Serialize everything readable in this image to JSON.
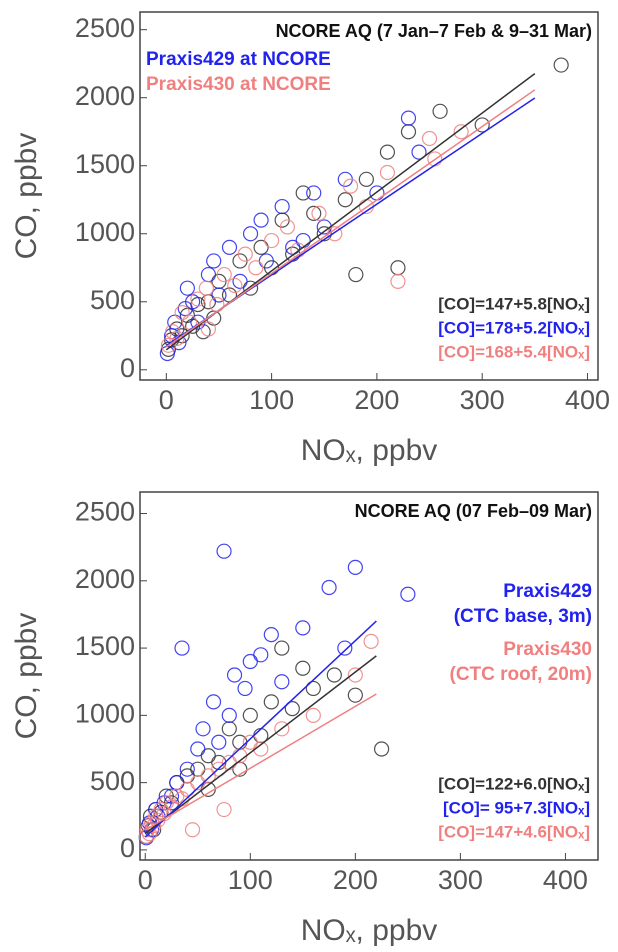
{
  "chart_data": [
    {
      "type": "scatter",
      "title": "NCORE AQ (7 Jan–7 Feb & 9–31 Mar)",
      "xlabel": "NOₓ, ppbv",
      "ylabel": "CO, ppbv",
      "xlim": [
        -25,
        410
      ],
      "ylim": [
        -75,
        2630
      ],
      "xticks": [
        0,
        100,
        200,
        300,
        400
      ],
      "yticks": [
        0,
        500,
        1000,
        1500,
        2000,
        2500
      ],
      "legend": "upper left",
      "series": [
        {
          "color": "#333333",
          "x": [
            2,
            5,
            10,
            15,
            20,
            25,
            30,
            40,
            45,
            50,
            60,
            70,
            80,
            90,
            100,
            110,
            120,
            130,
            150,
            170,
            190,
            210,
            230,
            260,
            300,
            375,
            220,
            180,
            140,
            35
          ],
          "y": [
            150,
            220,
            300,
            250,
            400,
            320,
            480,
            500,
            380,
            650,
            550,
            800,
            600,
            900,
            750,
            1100,
            850,
            1300,
            1000,
            1250,
            1400,
            1600,
            1750,
            1900,
            1800,
            2240,
            750,
            700,
            1150,
            280
          ],
          "fit": {
            "intercept": 147,
            "slope": 5.8,
            "x_range": [
              0,
              350
            ],
            "label": "[CO]=147+5.8[NOₓ]"
          }
        },
        {
          "name": [
            "Praxis429 at NCORE"
          ],
          "color": "#2222ee",
          "x": [
            1,
            5,
            8,
            12,
            18,
            25,
            30,
            40,
            50,
            60,
            70,
            80,
            95,
            110,
            120,
            140,
            150,
            170,
            200,
            240,
            230,
            20,
            45,
            90,
            130
          ],
          "y": [
            120,
            250,
            350,
            200,
            450,
            500,
            350,
            700,
            550,
            900,
            650,
            1000,
            800,
            1200,
            900,
            1300,
            1050,
            1400,
            1300,
            1600,
            1850,
            600,
            800,
            1100,
            950
          ],
          "fit": {
            "intercept": 178,
            "slope": 5.2,
            "x_range": [
              0,
              350
            ],
            "label": "[CO]=178+5.2[NOₓ]"
          }
        },
        {
          "name": [
            "Praxis430 at NCORE"
          ],
          "color": "#f08080",
          "x": [
            2,
            6,
            10,
            15,
            22,
            30,
            38,
            48,
            55,
            65,
            75,
            85,
            100,
            115,
            125,
            145,
            160,
            175,
            190,
            210,
            250,
            280,
            255,
            40,
            220
          ],
          "y": [
            180,
            280,
            230,
            420,
            350,
            520,
            600,
            480,
            700,
            620,
            850,
            750,
            950,
            1050,
            880,
            1150,
            1000,
            1350,
            1200,
            1450,
            1700,
            1750,
            1550,
            300,
            650
          ],
          "fit": {
            "intercept": 168,
            "slope": 5.4,
            "x_range": [
              0,
              350
            ],
            "label": "[CO]=168+5.4[NOₓ]"
          }
        }
      ]
    },
    {
      "type": "scatter",
      "title": "NCORE AQ (07 Feb–09 Mar)",
      "xlabel": "NOₓ, ppbv",
      "ylabel": "CO, ppbv",
      "xlim": [
        -5,
        431
      ],
      "ylim": [
        -75,
        2660
      ],
      "xticks": [
        0,
        100,
        200,
        300,
        400
      ],
      "yticks": [
        0,
        500,
        1000,
        1500,
        2000,
        2500
      ],
      "legend": "upper right",
      "series": [
        {
          "color": "#333333",
          "x": [
            1,
            3,
            5,
            8,
            10,
            15,
            20,
            25,
            30,
            40,
            50,
            60,
            70,
            80,
            90,
            100,
            110,
            120,
            140,
            160,
            180,
            200,
            225,
            150,
            130,
            60,
            90
          ],
          "y": [
            100,
            180,
            250,
            150,
            300,
            280,
            400,
            350,
            500,
            550,
            600,
            700,
            650,
            900,
            800,
            1000,
            850,
            1100,
            1050,
            1200,
            1300,
            1150,
            750,
            1350,
            1500,
            450,
            600
          ],
          "fit": {
            "intercept": 122,
            "slope": 6.0,
            "x_range": [
              0,
              220
            ],
            "label": "[CO]=122+6.0[NOₓ]"
          }
        },
        {
          "name": [
            "Praxis429",
            "(CTC base, 3m)"
          ],
          "color": "#2222ee",
          "x": [
            1,
            4,
            6,
            10,
            12,
            18,
            25,
            30,
            40,
            50,
            55,
            65,
            75,
            80,
            85,
            95,
            100,
            110,
            120,
            130,
            150,
            175,
            200,
            250,
            190,
            35,
            70
          ],
          "y": [
            90,
            200,
            150,
            300,
            250,
            350,
            400,
            500,
            600,
            750,
            900,
            1100,
            2220,
            1000,
            1300,
            1200,
            1400,
            1450,
            1600,
            1250,
            1650,
            1950,
            2100,
            1900,
            1500,
            1500,
            800
          ],
          "fit": {
            "intercept": 95,
            "slope": 7.3,
            "x_range": [
              0,
              220
            ],
            "label": "[CO]= 95+7.3[NOₓ]"
          }
        },
        {
          "name": [
            "Praxis430",
            "(CTC roof, 20m)"
          ],
          "color": "#f08080",
          "x": [
            1,
            2,
            4,
            6,
            8,
            10,
            12,
            15,
            18,
            20,
            25,
            30,
            35,
            40,
            50,
            60,
            70,
            80,
            90,
            100,
            110,
            130,
            160,
            200,
            215,
            45,
            75
          ],
          "y": [
            100,
            150,
            120,
            200,
            180,
            250,
            220,
            300,
            270,
            350,
            320,
            400,
            380,
            450,
            500,
            550,
            600,
            650,
            700,
            800,
            750,
            900,
            1000,
            1300,
            1550,
            150,
            300
          ],
          "fit": {
            "intercept": 147,
            "slope": 4.6,
            "x_range": [
              0,
              220
            ],
            "label": "[CO]=147+4.6[NOₓ]"
          }
        }
      ]
    }
  ]
}
